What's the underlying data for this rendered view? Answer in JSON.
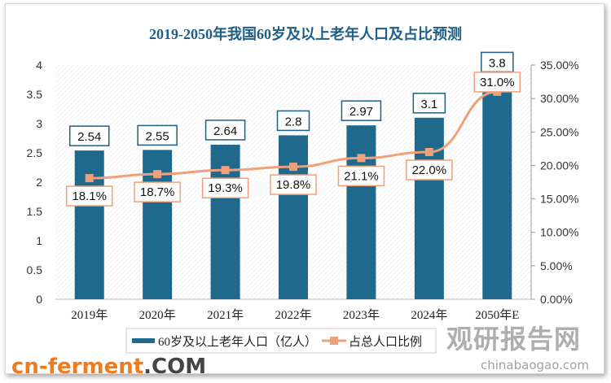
{
  "chart_data": {
    "type": "bar+line",
    "title": "2019-2050年我国60岁及以上老年人口及占比预测",
    "categories": [
      "2019年",
      "2020年",
      "2021年",
      "2022年",
      "2023年",
      "2024年",
      "2050年E"
    ],
    "series": [
      {
        "name": "60岁及以上老年人口（亿人）",
        "type": "bar",
        "axis": "left",
        "values": [
          2.54,
          2.55,
          2.64,
          2.8,
          2.97,
          3.1,
          3.8
        ],
        "labels": [
          "2.54",
          "2.55",
          "2.64",
          "2.8",
          "2.97",
          "3.1",
          "3.8"
        ],
        "color": "#1f6a8c"
      },
      {
        "name": "占总人口比例",
        "type": "line",
        "axis": "right",
        "values": [
          18.1,
          18.7,
          19.3,
          19.8,
          21.1,
          22.0,
          31.0
        ],
        "labels": [
          "18.1%",
          "18.7%",
          "19.3%",
          "19.8%",
          "21.1%",
          "22.0%",
          "31.0%"
        ],
        "color": "#f0a07a"
      }
    ],
    "yleft": {
      "ylim": [
        0,
        4
      ],
      "ticks": [
        "0",
        "0.5",
        "1",
        "1.5",
        "2",
        "2.5",
        "3",
        "3.5",
        "4"
      ]
    },
    "yright": {
      "ylim": [
        0,
        35
      ],
      "ticks": [
        "0.00%",
        "5.00%",
        "10.00%",
        "15.00%",
        "20.00%",
        "25.00%",
        "30.00%",
        "35.00%"
      ]
    },
    "legend": "bottom",
    "grid": false
  },
  "watermark": {
    "brand": "观研报告网",
    "site": "chinabaogao.com",
    "site2_a": "cn-ferment",
    "site2_b": ".COM"
  }
}
